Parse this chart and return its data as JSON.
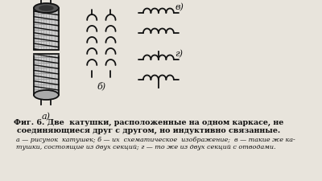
{
  "bg_color": "#e8e4dc",
  "line_color": "#111111",
  "title_line1": "Фиг. 6. Две  катушки, расположенные на одном каркасе, не",
  "title_line2": "соединяющиеся друг с другом, но индуктивно связанные.",
  "caption_line1": "а — рисунок  катушек; б — их  схематическое  изображение;  в — такие же ка-",
  "caption_line2": "тушки, состоящие из двух секций; г — то же из двух секций с отводами.",
  "label_a": "а)",
  "label_b": "б)",
  "label_v": "в)",
  "label_g": "г)"
}
